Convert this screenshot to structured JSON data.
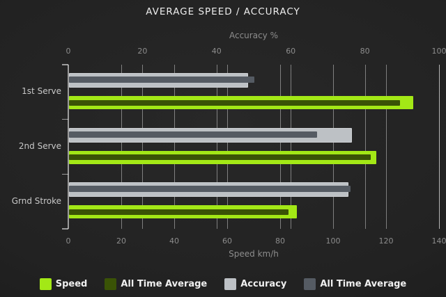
{
  "title": "AVERAGE SPEED / ACCURACY",
  "chart_data": {
    "type": "bar",
    "orientation": "horizontal",
    "title": "AVERAGE SPEED / ACCURACY",
    "categories": [
      "1st Serve",
      "2nd Serve",
      "Grnd Stroke"
    ],
    "series": [
      {
        "name": "Speed",
        "axis": "speed",
        "role": "main",
        "color": "#a3e816",
        "values": [
          130,
          116,
          86
        ]
      },
      {
        "name": "All Time Average",
        "axis": "speed",
        "role": "overlay",
        "color": "#3a5306",
        "values": [
          125,
          114,
          83
        ]
      },
      {
        "name": "Accuracy",
        "axis": "accuracy",
        "role": "main",
        "color": "#bdc1c5",
        "values": [
          48,
          76,
          75
        ]
      },
      {
        "name": "All Time Average",
        "axis": "accuracy",
        "role": "overlay",
        "color": "#555b63",
        "values": [
          50,
          67,
          76
        ]
      }
    ],
    "axes": {
      "top": {
        "label": "Accuracy %",
        "min": 0,
        "max": 100,
        "ticks": [
          0,
          20,
          40,
          60,
          80,
          100
        ]
      },
      "bottom": {
        "label": "Speed km/h",
        "min": 0,
        "max": 140,
        "ticks": [
          0,
          20,
          40,
          60,
          80,
          100,
          120,
          140
        ]
      }
    },
    "grid": true,
    "legend_position": "bottom"
  },
  "colors": {
    "background_center": "#282828",
    "background_edge": "#141414",
    "grid_line": "rgba(255,255,255,0.42)",
    "axis_line": "rgba(255,255,255,0.55)",
    "tick_text": "#8d8d8d",
    "category_text": "#c8c8c8",
    "title_text": "#ededed",
    "legend_text": "#f0f0f0"
  }
}
